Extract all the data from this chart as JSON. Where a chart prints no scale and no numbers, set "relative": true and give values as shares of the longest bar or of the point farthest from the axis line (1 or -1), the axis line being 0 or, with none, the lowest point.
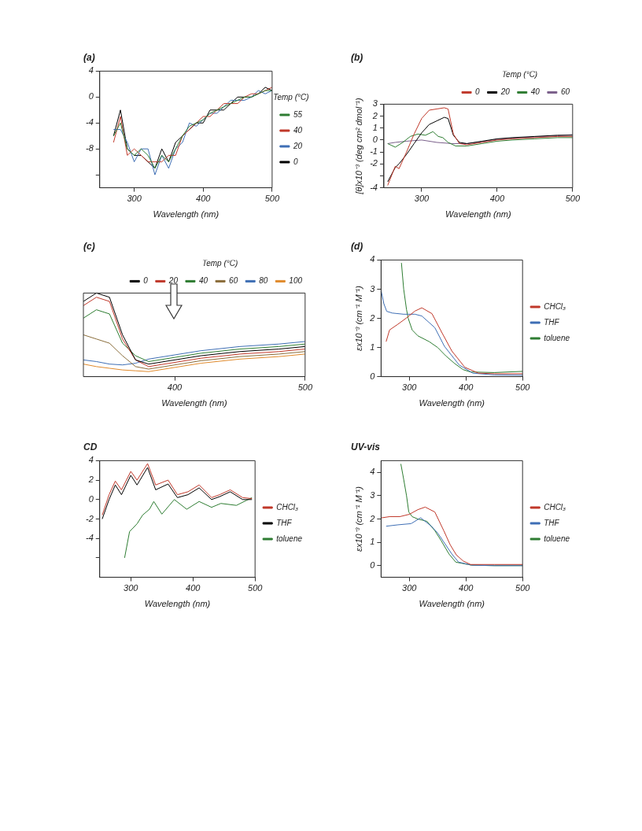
{
  "chart_data": [
    {
      "type": "line",
      "title": "(a)",
      "xlabel": "Wavelength (nm)",
      "xlim": [
        250,
        500
      ],
      "xticks": [
        300,
        400,
        500
      ],
      "ylim": [
        -14,
        4
      ],
      "yticks": [
        4,
        0,
        -4,
        -8,
        {
          "value": -12,
          "label": null
        }
      ],
      "legend": "right",
      "legend_title": "Temp (°C)",
      "grid": false,
      "x": [
        270,
        280,
        290,
        300,
        310,
        320,
        330,
        340,
        350,
        360,
        370,
        380,
        390,
        400,
        410,
        420,
        430,
        440,
        450,
        460,
        470,
        480,
        490,
        500
      ],
      "series": [
        {
          "name": "55",
          "color": "#2e7d32",
          "values": [
            -6,
            -4,
            -8,
            -9,
            -8,
            -9,
            -11,
            -9,
            -10,
            -8,
            -6,
            -4.5,
            -4,
            -3.5,
            -2.5,
            -2,
            -1.5,
            -1,
            -0.5,
            0,
            0,
            0.5,
            1,
            1
          ]
        },
        {
          "name": "40",
          "color": "#c0392b",
          "values": [
            -7,
            -3,
            -9,
            -8,
            -9,
            -10,
            -10,
            -10,
            -9,
            -9,
            -6,
            -5,
            -4,
            -3,
            -3,
            -2,
            -1,
            -1,
            -1,
            0,
            0.5,
            0.5,
            1,
            1.5
          ]
        },
        {
          "name": "20",
          "color": "#3f6fb5",
          "values": [
            -5,
            -5,
            -7,
            -10,
            -8,
            -8,
            -12,
            -9,
            -11,
            -8,
            -7,
            -4,
            -4.5,
            -3.5,
            -2.5,
            -2.5,
            -1.5,
            -0.5,
            -0.5,
            -0.5,
            0,
            1,
            0.5,
            1
          ]
        },
        {
          "name": "0",
          "color": "#000000",
          "values": [
            -6,
            -2,
            -8,
            -9,
            -9,
            -10,
            -11,
            -8,
            -10,
            -7,
            -6,
            -5,
            -4,
            -4,
            -2,
            -2,
            -2,
            -1,
            0,
            0,
            0,
            0.5,
            1.5,
            1
          ]
        }
      ]
    },
    {
      "type": "line",
      "title": "(b)",
      "xlabel": "Wavelength (nm)",
      "ylabel": "[θ]x10⁻³ (deg cm² dmol⁻¹)",
      "xlim": [
        250,
        500
      ],
      "xticks": [
        300,
        400,
        500
      ],
      "ylim": [
        -4,
        3
      ],
      "yticks": [
        -4,
        {
          "value": -3,
          "label": null
        },
        -2,
        -1,
        0,
        1,
        2,
        3
      ],
      "legend": "top right",
      "legend_title": "Temp (°C)",
      "grid": false,
      "series": [
        {
          "name": "0",
          "color": "#c0392b",
          "x": [
            255,
            265,
            270,
            280,
            290,
            300,
            310,
            320,
            330,
            335,
            342,
            350,
            360,
            380,
            400,
            420,
            450,
            480,
            500
          ],
          "values": [
            -3.8,
            -2.2,
            -2.4,
            -1,
            0.5,
            1.8,
            2.5,
            2.6,
            2.7,
            2.6,
            0.5,
            -0.3,
            -0.4,
            -0.2,
            0,
            0.1,
            0.2,
            0.3,
            0.3
          ]
        },
        {
          "name": "20",
          "color": "#000000",
          "x": [
            255,
            265,
            270,
            280,
            290,
            300,
            310,
            320,
            330,
            335,
            342,
            350,
            360,
            380,
            400,
            420,
            450,
            480,
            500
          ],
          "values": [
            -3.5,
            -2.3,
            -2,
            -1.2,
            -0.3,
            0.6,
            1.3,
            1.6,
            1.9,
            1.8,
            0.4,
            -0.2,
            -0.3,
            -0.1,
            0.1,
            0.2,
            0.3,
            0.4,
            0.4
          ]
        },
        {
          "name": "40",
          "color": "#2e7d32",
          "x": [
            255,
            265,
            275,
            285,
            295,
            305,
            315,
            322,
            328,
            335,
            345,
            360,
            380,
            400,
            420,
            450,
            480,
            500
          ],
          "values": [
            -0.3,
            -0.6,
            -0.2,
            0.3,
            0.5,
            0.4,
            0.7,
            0.3,
            0.2,
            -0.2,
            -0.5,
            -0.5,
            -0.3,
            -0.1,
            0,
            0.1,
            0.2,
            0.2
          ]
        },
        {
          "name": "60",
          "color": "#7a5f8a",
          "x": [
            255,
            265,
            280,
            300,
            320,
            340,
            360,
            380,
            400,
            420,
            450,
            480,
            500
          ],
          "values": [
            -0.3,
            -0.2,
            -0.1,
            0,
            -0.2,
            -0.3,
            -0.3,
            -0.15,
            0.05,
            0.15,
            0.25,
            0.35,
            0.45
          ]
        }
      ]
    },
    {
      "type": "line",
      "title": "(c)",
      "xlabel": "Wavelength (nm)",
      "relative": true,
      "xlim": [
        330,
        500
      ],
      "xticks": [
        400,
        500
      ],
      "legend": "top right",
      "legend_title": "Temp (°C)",
      "grid": false,
      "x": [
        330,
        340,
        350,
        360,
        370,
        380,
        400,
        420,
        450,
        480,
        500
      ],
      "series": [
        {
          "name": "0",
          "color": "#000000",
          "values": [
            0.9,
            1,
            0.95,
            0.5,
            0.2,
            0.15,
            0.2,
            0.25,
            0.3,
            0.33,
            0.36
          ]
        },
        {
          "name": "20",
          "color": "#c0392b",
          "values": [
            0.85,
            0.95,
            0.9,
            0.45,
            0.2,
            0.12,
            0.17,
            0.22,
            0.27,
            0.3,
            0.33
          ]
        },
        {
          "name": "40",
          "color": "#2e7d32",
          "values": [
            0.7,
            0.8,
            0.75,
            0.4,
            0.25,
            0.18,
            0.23,
            0.28,
            0.33,
            0.36,
            0.39
          ]
        },
        {
          "name": "60",
          "color": "#8a6d3b",
          "values": [
            0.5,
            0.45,
            0.4,
            0.25,
            0.12,
            0.09,
            0.14,
            0.19,
            0.24,
            0.27,
            0.3
          ]
        },
        {
          "name": "80",
          "color": "#3f6fb5",
          "values": [
            0.2,
            0.18,
            0.15,
            0.14,
            0.16,
            0.21,
            0.26,
            0.31,
            0.36,
            0.39,
            0.42
          ]
        },
        {
          "name": "100",
          "color": "#e08a2c",
          "values": [
            0.15,
            0.12,
            0.1,
            0.08,
            0.07,
            0.06,
            0.11,
            0.16,
            0.21,
            0.24,
            0.27
          ]
        }
      ]
    },
    {
      "type": "line",
      "title": "(d)",
      "xlabel": "Wavelength (nm)",
      "ylabel": "εx10⁻³ (cm⁻¹ M⁻¹)",
      "xlim": [
        250,
        500
      ],
      "xticks": [
        300,
        400,
        500
      ],
      "ylim": [
        0,
        4
      ],
      "yticks": [
        0,
        1,
        2,
        3,
        4
      ],
      "legend": "right",
      "grid": false,
      "series": [
        {
          "name": "CHCl₃",
          "color": "#c0392b",
          "x": [
            259,
            265,
            280,
            294,
            310,
            322,
            340,
            355,
            375,
            398,
            422,
            450,
            500
          ],
          "values": [
            1.2,
            1.6,
            1.8,
            2,
            2.25,
            2.36,
            2.16,
            1.6,
            0.88,
            0.32,
            0.12,
            0.1,
            0.1
          ]
        },
        {
          "name": "THF",
          "color": "#3f6fb5",
          "x": [
            250,
            255,
            260,
            270,
            290,
            310,
            322,
            345,
            362,
            388,
            412,
            450,
            500
          ],
          "values": [
            2.96,
            2.5,
            2.24,
            2.18,
            2.14,
            2.14,
            2.08,
            1.68,
            1.04,
            0.4,
            0.12,
            0.06,
            0.05
          ]
        },
        {
          "name": "toluene",
          "color": "#2e7d32",
          "x": [
            286,
            290,
            295,
            298,
            305,
            315,
            335,
            350,
            364,
            380,
            395,
            408,
            450,
            500
          ],
          "values": [
            3.9,
            3,
            2.3,
            2,
            1.6,
            1.4,
            1.2,
            1,
            0.72,
            0.45,
            0.24,
            0.16,
            0.14,
            0.18
          ]
        }
      ]
    },
    {
      "type": "line",
      "title": "CD",
      "xlabel": "Wavelength (nm)",
      "xlim": [
        250,
        500
      ],
      "xticks": [
        300,
        400,
        500
      ],
      "ylim": [
        -8,
        4
      ],
      "yticks": [
        4,
        2,
        0,
        -2,
        -4,
        {
          "value": -6,
          "label": null
        }
      ],
      "legend": "right",
      "grid": false,
      "series": [
        {
          "name": "CHCl₃",
          "color": "#c0392b",
          "x": [
            254,
            265,
            275,
            285,
            300,
            310,
            327,
            340,
            360,
            375,
            392,
            410,
            430,
            443,
            460,
            480,
            495
          ],
          "values": [
            -1.6,
            0.5,
            1.9,
            1,
            2.9,
            2,
            3.7,
            1.5,
            2,
            0.5,
            0.8,
            1.5,
            0.2,
            0.5,
            1,
            0.2,
            0.1
          ]
        },
        {
          "name": "THF",
          "color": "#000000",
          "x": [
            254,
            265,
            275,
            285,
            300,
            310,
            327,
            340,
            360,
            375,
            392,
            410,
            430,
            443,
            460,
            480,
            495
          ],
          "values": [
            -2,
            0,
            1.5,
            0.5,
            2.5,
            1.5,
            3.3,
            1,
            1.6,
            0.2,
            0.5,
            1.2,
            0,
            0.3,
            0.8,
            0,
            0
          ]
        },
        {
          "name": "toluene",
          "color": "#2e7d32",
          "x": [
            290,
            298,
            310,
            319,
            330,
            337,
            350,
            370,
            390,
            410,
            430,
            445,
            470,
            495
          ],
          "values": [
            -6,
            -3.3,
            -2.5,
            -1.6,
            -1,
            -0.2,
            -1.5,
            0,
            -1,
            -0.2,
            -0.8,
            -0.4,
            -0.6,
            0.2
          ]
        }
      ]
    },
    {
      "type": "line",
      "title": "UV-vis",
      "xlabel": "Wavelength (nm)",
      "ylabel": "εx10⁻³ (cm⁻¹ M⁻¹)",
      "xlim": [
        250,
        500
      ],
      "xticks": [
        300,
        400,
        500
      ],
      "ylim": [
        -0.5,
        4.5
      ],
      "yticks": [
        0,
        1,
        2,
        3,
        4
      ],
      "legend": "right",
      "grid": false,
      "series": [
        {
          "name": "CHCl₃",
          "color": "#c0392b",
          "x": [
            251,
            265,
            283,
            300,
            315,
            328,
            345,
            361,
            372,
            383,
            395,
            408,
            450,
            500
          ],
          "values": [
            2.05,
            2.1,
            2.1,
            2.2,
            2.4,
            2.51,
            2.3,
            1.49,
            0.9,
            0.46,
            0.2,
            0.05,
            0.05,
            0.05
          ]
        },
        {
          "name": "THF",
          "color": "#3f6fb5",
          "x": [
            259,
            280,
            303,
            320,
            339,
            350,
            362,
            375,
            387,
            410,
            450,
            500
          ],
          "values": [
            1.69,
            1.75,
            1.8,
            2.05,
            1.69,
            1.4,
            0.97,
            0.5,
            0.15,
            0.02,
            0,
            0
          ]
        },
        {
          "name": "toluene",
          "color": "#2e7d32",
          "x": [
            285,
            290,
            295,
            299,
            305,
            315,
            331,
            345,
            356,
            370,
            382,
            410,
            450,
            500
          ],
          "values": [
            4.36,
            3.7,
            3,
            2.3,
            2.1,
            2,
            1.9,
            1.5,
            1.08,
            0.5,
            0.15,
            0.02,
            0,
            0
          ]
        }
      ]
    }
  ]
}
